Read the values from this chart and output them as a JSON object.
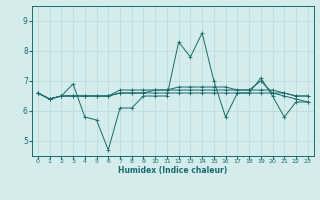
{
  "xlabel": "Humidex (Indice chaleur)",
  "ylabel": "",
  "bg_color": "#d4ecec",
  "grid_color": "#b8d8d8",
  "line_color": "#1a6b6b",
  "xlim": [
    -0.5,
    23.5
  ],
  "ylim": [
    4.5,
    9.5
  ],
  "xticks": [
    0,
    1,
    2,
    3,
    4,
    5,
    6,
    7,
    8,
    9,
    10,
    11,
    12,
    13,
    14,
    15,
    16,
    17,
    18,
    19,
    20,
    21,
    22,
    23
  ],
  "yticks": [
    5,
    6,
    7,
    8,
    9
  ],
  "series": [
    [
      6.6,
      6.4,
      6.5,
      6.9,
      5.8,
      5.7,
      4.7,
      6.1,
      6.1,
      6.5,
      6.5,
      6.5,
      8.3,
      7.8,
      8.6,
      7.0,
      5.8,
      6.6,
      6.6,
      7.1,
      6.5,
      5.8,
      6.3,
      6.3
    ],
    [
      6.6,
      6.4,
      6.5,
      6.5,
      6.5,
      6.5,
      6.5,
      6.6,
      6.6,
      6.6,
      6.7,
      6.7,
      6.7,
      6.7,
      6.7,
      6.7,
      6.7,
      6.7,
      6.7,
      6.7,
      6.7,
      6.6,
      6.5,
      6.5
    ],
    [
      6.6,
      6.4,
      6.5,
      6.5,
      6.5,
      6.5,
      6.5,
      6.7,
      6.7,
      6.7,
      6.7,
      6.7,
      6.8,
      6.8,
      6.8,
      6.8,
      6.8,
      6.7,
      6.7,
      7.0,
      6.6,
      6.5,
      6.4,
      6.3
    ],
    [
      6.6,
      6.4,
      6.5,
      6.5,
      6.5,
      6.5,
      6.5,
      6.6,
      6.6,
      6.6,
      6.6,
      6.6,
      6.6,
      6.6,
      6.6,
      6.6,
      6.6,
      6.6,
      6.6,
      6.6,
      6.6,
      6.6,
      6.5,
      6.5
    ]
  ]
}
